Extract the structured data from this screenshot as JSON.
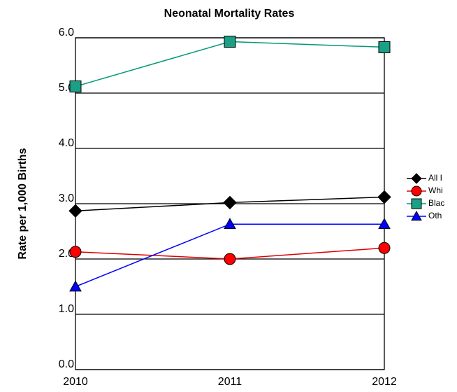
{
  "chart_data": {
    "type": "line",
    "title": "Neonatal Mortality Rates",
    "y_label": "Rate per 1,000 Births",
    "categories": [
      "2010",
      "2011",
      "2012"
    ],
    "series": [
      {
        "name": "All I",
        "color": "#000000",
        "marker": "diamond",
        "marker_fill": "#000000",
        "values": [
          2.87,
          3.02,
          3.12
        ]
      },
      {
        "name": "Whi",
        "color": "#e00000",
        "marker": "circle",
        "marker_fill": "#ff0000",
        "values": [
          2.13,
          2.0,
          2.2
        ]
      },
      {
        "name": "Blac",
        "color": "#009977",
        "marker": "square",
        "marker_fill": "#1aa084",
        "values": [
          5.12,
          5.93,
          5.83
        ]
      },
      {
        "name": "Oth",
        "color": "#0000ff",
        "marker": "triangle",
        "marker_fill": "#0000ff",
        "values": [
          1.5,
          2.63,
          2.63
        ]
      }
    ],
    "ylim": [
      0,
      6
    ],
    "yticks": [
      {
        "value": 0,
        "label": "0.0"
      },
      {
        "value": 1,
        "label": "1.0"
      },
      {
        "value": 2,
        "label": "2.0"
      },
      {
        "value": 3,
        "label": "3.0"
      },
      {
        "value": 4,
        "label": "4.0"
      },
      {
        "value": 5,
        "label": "5.0"
      },
      {
        "value": 6,
        "label": "6.0"
      }
    ],
    "grid": true,
    "legend": "right"
  }
}
